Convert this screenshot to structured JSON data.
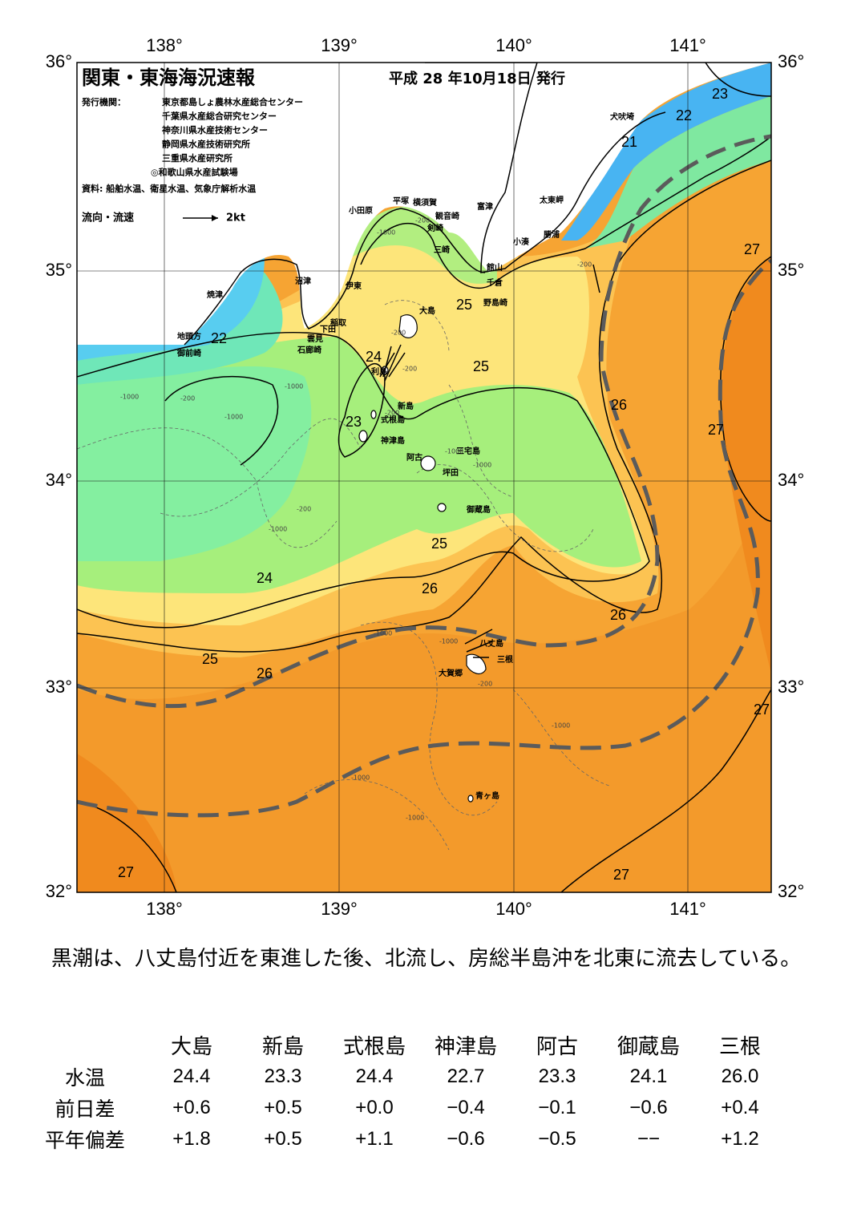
{
  "header": {
    "title": "関東・東海海況速報",
    "date": "平成 28 年10月18日 発行",
    "publisher_label": "発行機関：",
    "publishers": [
      "東京都島しょ農林水産総合センター",
      "千葉県水産総合研究センター",
      "神奈川県水産技術センター",
      "静岡県水産技術研究所",
      "三重県水産研究所",
      "◎和歌山県水産試験場"
    ],
    "source": "資料: 船舶水温、衛星水温、気象庁解析水温",
    "legend_label": "流向・流速",
    "legend_speed": "2kt"
  },
  "axes": {
    "lon_labels": [
      "138°",
      "139°",
      "140°",
      "141°"
    ],
    "lat_labels": [
      "36°",
      "35°",
      "34°",
      "33°",
      "32°"
    ]
  },
  "places": [
    "犬吠埼",
    "太東岬",
    "勝浦",
    "小湊",
    "富津",
    "横須賀",
    "平塚",
    "小田原",
    "観音崎",
    "剣崎",
    "三崎",
    "館山",
    "千倉",
    "野島崎",
    "沼津",
    "伊東",
    "焼津",
    "稲取",
    "下田",
    "雲見",
    "石廊崎",
    "地頭方",
    "御前崎",
    "大島",
    "利島",
    "新島",
    "式根島",
    "神津島",
    "三宅島",
    "阿古",
    "坪田",
    "御蔵島",
    "八丈島",
    "三根",
    "大賀郷",
    "青ヶ島"
  ],
  "contour_labels": [
    "23",
    "22",
    "21",
    "27",
    "25",
    "22",
    "24",
    "25",
    "26",
    "23",
    "27",
    "25",
    "24",
    "26",
    "26",
    "25",
    "26",
    "27",
    "27",
    "27"
  ],
  "depth_labels": [
    "-200",
    "-1000",
    "-200",
    "-200",
    "-1000",
    "-1000",
    "-200",
    "-1000",
    "-200",
    "-1000",
    "-200",
    "-1000",
    "-1000",
    "-1000",
    "-200",
    "-1000",
    "-1000",
    "-1000",
    "-1000",
    "-200"
  ],
  "summary": "黒潮は、八丈島付近を東進した後、北流し、房総半島沖を北東に流去している。",
  "table": {
    "columns": [
      "大島",
      "新島",
      "式根島",
      "神津島",
      "阿古",
      "御蔵島",
      "三根"
    ],
    "rows": [
      {
        "label": "水温",
        "values": [
          "24.4",
          "23.3",
          "24.4",
          "22.7",
          "23.3",
          "24.1",
          "26.0"
        ]
      },
      {
        "label": "前日差",
        "values": [
          "+0.6",
          "+0.5",
          "+0.0",
          "−0.4",
          "−0.1",
          "−0.6",
          "+0.4"
        ]
      },
      {
        "label": "平年偏差",
        "values": [
          "+1.8",
          "+0.5",
          "+1.1",
          "−0.6",
          "−0.5",
          "−−",
          "+1.2"
        ]
      }
    ]
  }
}
